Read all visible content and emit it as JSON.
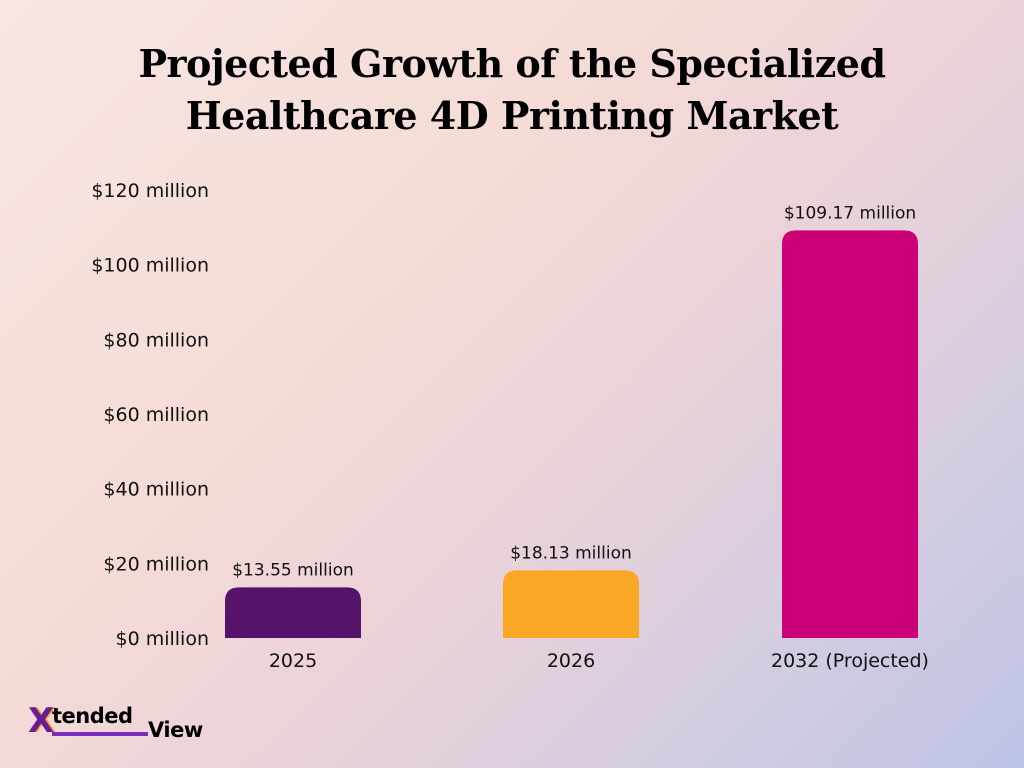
{
  "chart_data": {
    "type": "bar",
    "title_lines": [
      "Projected Growth of the Specialized",
      "Healthcare 4D Printing Market"
    ],
    "categories": [
      "2025",
      "2026",
      "2032 (Projected)"
    ],
    "values": [
      13.55,
      18.13,
      109.17
    ],
    "data_labels": [
      "$13.55 million",
      "$18.13 million",
      "$109.17 million"
    ],
    "bar_colors": [
      "#56136a",
      "#fba726",
      "#cc0077"
    ],
    "yticks": [
      0,
      20,
      40,
      60,
      80,
      100,
      120
    ],
    "ytick_labels": [
      "$0 million",
      "$20 million",
      "$40 million",
      "$60 million",
      "$80 million",
      "$100 million",
      "$120 million"
    ],
    "ylim": [
      0,
      120
    ],
    "grid": false,
    "legend": "none"
  },
  "logo": {
    "mark": "X",
    "word1": "tended",
    "word2": "View"
  }
}
